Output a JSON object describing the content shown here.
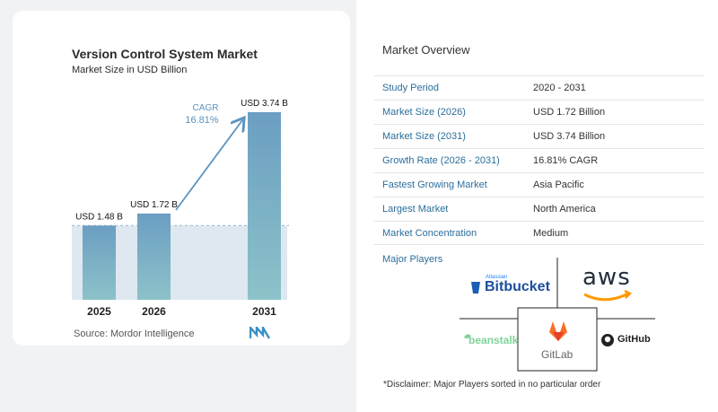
{
  "chart": {
    "title": "Version Control System Market",
    "subtitle": "Market Size in USD Billion",
    "source": "Source:  Mordor Intelligence",
    "cagr_label": "CAGR",
    "cagr_value": "16.81%"
  },
  "chart_data": {
    "type": "bar",
    "categories": [
      "2025",
      "2026",
      "2031"
    ],
    "values": [
      1.48,
      1.72,
      3.74
    ],
    "data_labels": [
      "USD 1.48 B",
      "USD 1.72 B",
      "USD 3.74 B"
    ],
    "title": "Version Control System Market",
    "subtitle": "Market Size in USD Billion",
    "xlabel": "",
    "ylabel": "",
    "ylim": [
      0,
      3.74
    ],
    "colors": {
      "bar_top": "#6b9ec2",
      "bar_bottom": "#8cc3c9",
      "arrow": "#5a93bf",
      "baseline_fill": "#dde8f1",
      "dashed": "#9bb6c9"
    }
  },
  "overview": {
    "title": "Market Overview",
    "rows": [
      {
        "label": "Study Period",
        "value": "2020 - 2031"
      },
      {
        "label": "Market Size (2026)",
        "value": "USD 1.72 Billion"
      },
      {
        "label": "Market Size (2031)",
        "value": "USD 3.74 Billion"
      },
      {
        "label": "Growth Rate (2026 - 2031)",
        "value": "16.81% CAGR"
      },
      {
        "label": "Fastest Growing Market",
        "value": "Asia Pacific"
      },
      {
        "label": "Largest Market",
        "value": "North America"
      },
      {
        "label": "Market Concentration",
        "value": "Medium"
      }
    ]
  },
  "players": {
    "label": "Major Players",
    "logos": {
      "bitbucket_small": "Atlassian",
      "bitbucket": "Bitbucket",
      "aws": "aws",
      "beanstalk": "beanstalk",
      "gitlab": "GitLab",
      "github": "GitHub"
    }
  },
  "disclaimer": "*Disclaimer: Major Players sorted in no particular order"
}
